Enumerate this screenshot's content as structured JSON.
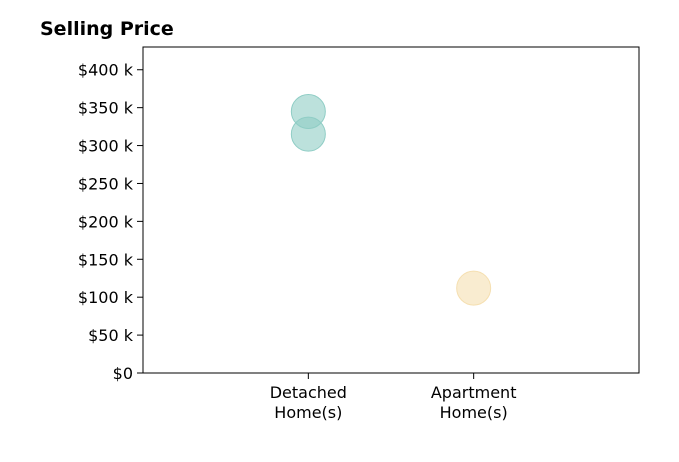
{
  "chart_data": {
    "type": "scatter",
    "title": "Selling Price",
    "xlabel": "",
    "ylabel": "",
    "categories": [
      [
        "Detached",
        "Home(s)"
      ],
      [
        "Apartment",
        "Home(s)"
      ]
    ],
    "y_ticks": [
      0,
      50000,
      100000,
      150000,
      200000,
      250000,
      300000,
      350000,
      400000
    ],
    "y_tick_labels": [
      "$0",
      "$50 k",
      "$100 k",
      "$150 k",
      "$200 k",
      "$250 k",
      "$300 k",
      "$350 k",
      "$400 k"
    ],
    "ylim": [
      0,
      430000
    ],
    "xlim": [
      -1,
      2
    ],
    "grid": false,
    "legend": "none",
    "points": [
      {
        "category_index": 0,
        "y": 345000,
        "color": "#8fcdc5"
      },
      {
        "category_index": 0,
        "y": 315000,
        "color": "#8fcdc5"
      },
      {
        "category_index": 1,
        "y": 112000,
        "color": "#f5dfb0"
      }
    ]
  }
}
